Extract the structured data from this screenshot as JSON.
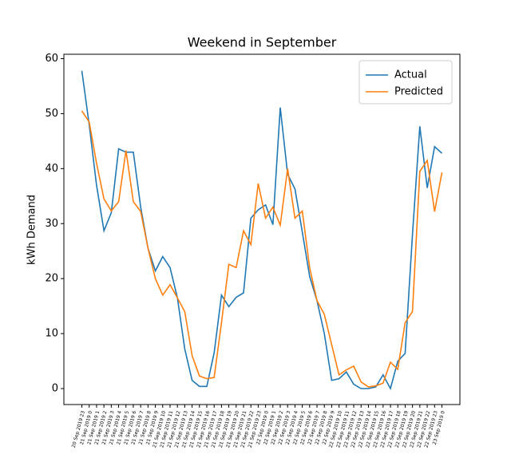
{
  "chart_data": {
    "type": "line",
    "title": "Weekend in September",
    "ylabel": "kWh Demand",
    "categories": [
      "20 Sep 2019 23",
      "21 Sep 2019 0",
      "21 Sep 2019 1",
      "21 Sep 2019 2",
      "21 Sep 2019 3",
      "21 Sep 2019 4",
      "21 Sep 2019 5",
      "21 Sep 2019 6",
      "21 Sep 2019 7",
      "21 Sep 2019 8",
      "21 Sep 2019 9",
      "21 Sep 2019 10",
      "21 Sep 2019 11",
      "21 Sep 2019 12",
      "21 Sep 2019 13",
      "21 Sep 2019 14",
      "21 Sep 2019 15",
      "21 Sep 2019 16",
      "21 Sep 2019 17",
      "21 Sep 2019 18",
      "21 Sep 2019 19",
      "21 Sep 2019 20",
      "21 Sep 2019 21",
      "21 Sep 2019 22",
      "21 Sep 2019 23",
      "22 Sep 2019 0",
      "22 Sep 2019 1",
      "22 Sep 2019 2",
      "22 Sep 2019 3",
      "22 Sep 2019 4",
      "22 Sep 2019 5",
      "22 Sep 2019 6",
      "22 Sep 2019 7",
      "22 Sep 2019 8",
      "22 Sep 2019 9",
      "22 Sep 2019 10",
      "22 Sep 2019 11",
      "22 Sep 2019 12",
      "22 Sep 2019 13",
      "22 Sep 2019 14",
      "22 Sep 2019 15",
      "22 Sep 2019 16",
      "22 Sep 2019 17",
      "22 Sep 2019 18",
      "22 Sep 2019 19",
      "22 Sep 2019 20",
      "22 Sep 2019 21",
      "22 Sep 2019 22",
      "22 Sep 2019 23",
      "23 Sep 2019 0"
    ],
    "series": [
      {
        "name": "Actual",
        "color": "#1f77b4",
        "values": [
          57.8,
          48,
          37,
          28.7,
          32,
          43.6,
          43,
          43,
          33,
          25.5,
          21.4,
          24,
          22,
          16.5,
          7.2,
          1.5,
          0.4,
          0.4,
          6.5,
          17,
          14.9,
          16.6,
          17.4,
          31,
          32.5,
          33.4,
          29.8,
          51.1,
          39,
          36.3,
          28.5,
          20.4,
          16,
          10,
          1.5,
          1.8,
          3,
          0.8,
          0,
          0,
          0.3,
          2.5,
          0,
          5,
          6.4,
          28,
          47.7,
          36.5,
          44,
          42.8
        ]
      },
      {
        "name": "Predicted",
        "color": "#ff7f0e",
        "values": [
          50.5,
          48.5,
          41,
          34.5,
          32.3,
          34,
          43.3,
          34,
          32.2,
          25.5,
          20,
          17,
          18.9,
          16.5,
          14,
          6,
          2.3,
          1.8,
          2,
          12,
          22.6,
          22,
          28.7,
          26.2,
          37.3,
          31,
          33,
          29.7,
          40,
          31,
          32.3,
          22,
          16,
          13.5,
          8,
          2.5,
          3.4,
          4.1,
          1.2,
          0.3,
          0.5,
          1,
          4.8,
          3.5,
          12,
          14,
          39.5,
          41.5,
          32.2,
          39.3
        ]
      }
    ],
    "ylim": [
      -2.9,
      60.8
    ],
    "yticks": [
      0,
      10,
      20,
      30,
      40,
      50,
      60
    ],
    "legend": "upper right"
  }
}
